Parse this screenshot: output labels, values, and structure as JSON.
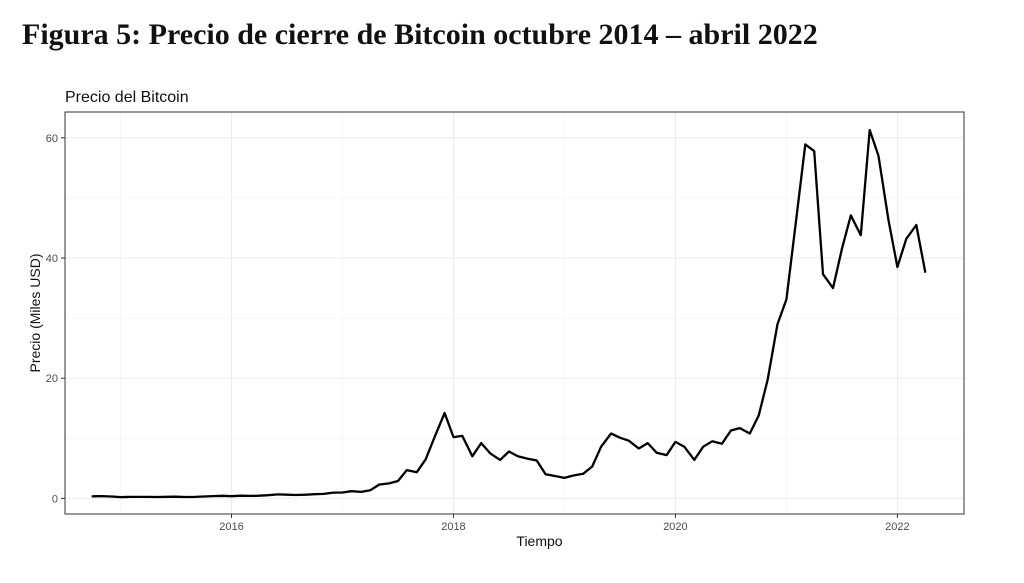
{
  "figure": {
    "title": "Figura 5: Precio de cierre de Bitcoin octubre 2014 – abril 2022"
  },
  "chart_data": {
    "type": "line",
    "title": "Precio del Bitcoin",
    "xlabel": "Tiempo",
    "ylabel": "Precio (Miles USD)",
    "x_ticks": [
      {
        "value": 2016,
        "label": "2016"
      },
      {
        "value": 2018,
        "label": "2018"
      },
      {
        "value": 2020,
        "label": "2020"
      },
      {
        "value": 2022,
        "label": "2022"
      }
    ],
    "y_ticks": [
      {
        "value": 0,
        "label": "0"
      },
      {
        "value": 20,
        "label": "20"
      },
      {
        "value": 40,
        "label": "40"
      },
      {
        "value": 60,
        "label": "60"
      }
    ],
    "xlim": [
      2014.5,
      2022.6
    ],
    "ylim": [
      -2.6,
      64.3
    ],
    "grid": true,
    "line_color": "#000000",
    "series": [
      {
        "x": [
          2014.75,
          2014.83,
          2014.92,
          2015.0,
          2015.08,
          2015.17,
          2015.25,
          2015.33,
          2015.42,
          2015.5,
          2015.58,
          2015.67,
          2015.75,
          2015.83,
          2015.92,
          2016.0,
          2016.08,
          2016.17,
          2016.25,
          2016.33,
          2016.42,
          2016.5,
          2016.58,
          2016.67,
          2016.75,
          2016.83,
          2016.92,
          2017.0,
          2017.08,
          2017.17,
          2017.25,
          2017.33,
          2017.42,
          2017.5,
          2017.58,
          2017.67,
          2017.75,
          2017.83,
          2017.92,
          2018.0,
          2018.08,
          2018.17,
          2018.25,
          2018.33,
          2018.42,
          2018.5,
          2018.58,
          2018.67,
          2018.75,
          2018.83,
          2018.92,
          2019.0,
          2019.08,
          2019.17,
          2019.25,
          2019.33,
          2019.42,
          2019.5,
          2019.58,
          2019.67,
          2019.75,
          2019.83,
          2019.92,
          2020.0,
          2020.08,
          2020.17,
          2020.25,
          2020.33,
          2020.42,
          2020.5,
          2020.58,
          2020.67,
          2020.75,
          2020.83,
          2020.92,
          2021.0,
          2021.08,
          2021.17,
          2021.25,
          2021.33,
          2021.42,
          2021.5,
          2021.58,
          2021.67,
          2021.75,
          2021.83,
          2021.92,
          2022.0,
          2022.08,
          2022.17,
          2022.25
        ],
        "values": [
          0.34,
          0.38,
          0.32,
          0.22,
          0.25,
          0.24,
          0.24,
          0.23,
          0.26,
          0.28,
          0.23,
          0.24,
          0.31,
          0.38,
          0.43,
          0.37,
          0.44,
          0.42,
          0.45,
          0.53,
          0.67,
          0.62,
          0.57,
          0.61,
          0.7,
          0.74,
          0.96,
          0.97,
          1.19,
          1.07,
          1.35,
          2.3,
          2.5,
          2.9,
          4.7,
          4.35,
          6.5,
          10.2,
          14.2,
          10.2,
          10.4,
          7.0,
          9.2,
          7.5,
          6.4,
          7.8,
          7.0,
          6.6,
          6.3,
          4.0,
          3.7,
          3.4,
          3.8,
          4.1,
          5.3,
          8.6,
          10.8,
          10.1,
          9.6,
          8.3,
          9.2,
          7.6,
          7.2,
          9.4,
          8.6,
          6.4,
          8.6,
          9.5,
          9.1,
          11.3,
          11.7,
          10.8,
          13.8,
          19.7,
          29.0,
          33.1,
          45.2,
          58.9,
          57.8,
          37.3,
          35.0,
          41.5,
          47.1,
          43.8,
          61.3,
          57.0,
          46.3,
          38.5,
          43.2,
          45.5,
          37.7
        ]
      }
    ]
  }
}
